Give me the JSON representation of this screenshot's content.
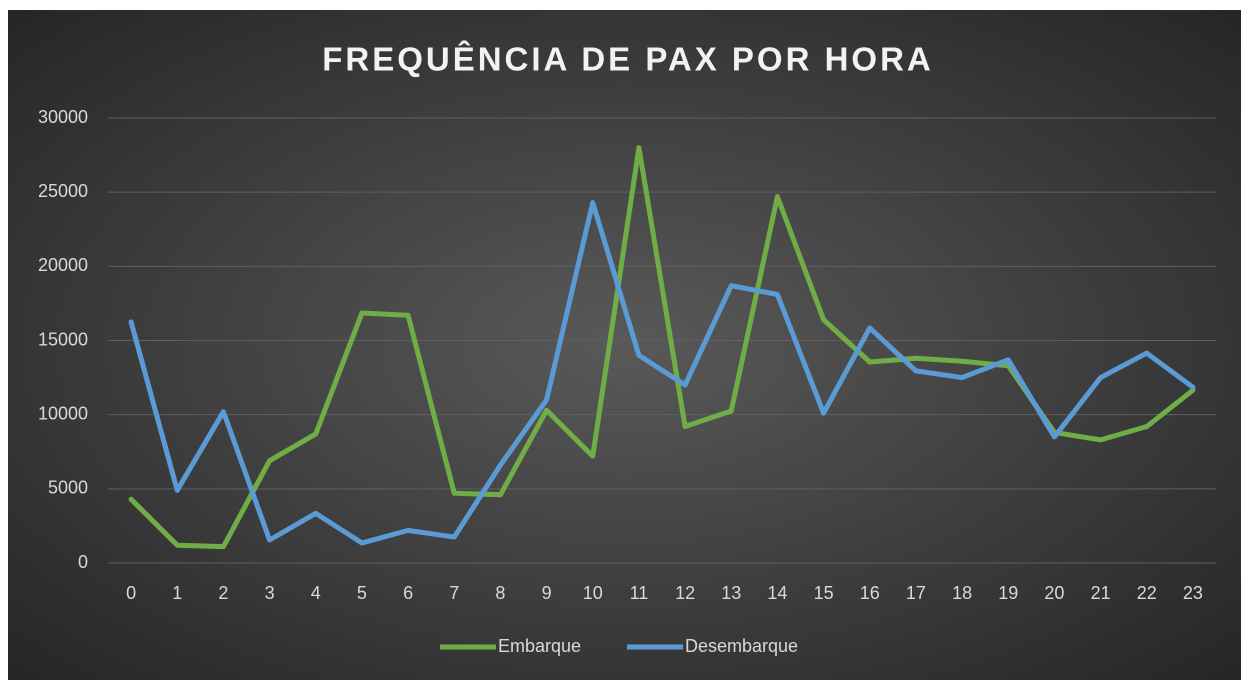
{
  "chart_data": {
    "type": "line",
    "title": "FREQUÊNCIA DE PAX POR HORA",
    "categories": [
      "0",
      "1",
      "2",
      "3",
      "4",
      "5",
      "6",
      "7",
      "8",
      "9",
      "10",
      "11",
      "12",
      "13",
      "14",
      "15",
      "16",
      "17",
      "18",
      "19",
      "20",
      "21",
      "22",
      "23"
    ],
    "series": [
      {
        "name": "Embarque",
        "color": "#70ad47",
        "values": [
          4300,
          1200,
          1100,
          6900,
          8700,
          16850,
          16700,
          4700,
          4600,
          10300,
          7200,
          28000,
          9200,
          10250,
          24700,
          16400,
          13550,
          13800,
          13600,
          13300,
          8800,
          8300,
          9200,
          11650
        ]
      },
      {
        "name": "Desembarque",
        "color": "#5b9bd5",
        "values": [
          16250,
          4900,
          10200,
          1550,
          3350,
          1350,
          2200,
          1750,
          6600,
          11000,
          24300,
          14000,
          12000,
          18700,
          18100,
          10100,
          15850,
          12950,
          12500,
          13700,
          8500,
          12500,
          14150,
          11850
        ]
      }
    ],
    "ylim": [
      0,
      30000
    ],
    "yticks": [
      0,
      5000,
      10000,
      15000,
      20000,
      25000,
      30000
    ],
    "grid": true,
    "legend": "bottom"
  }
}
